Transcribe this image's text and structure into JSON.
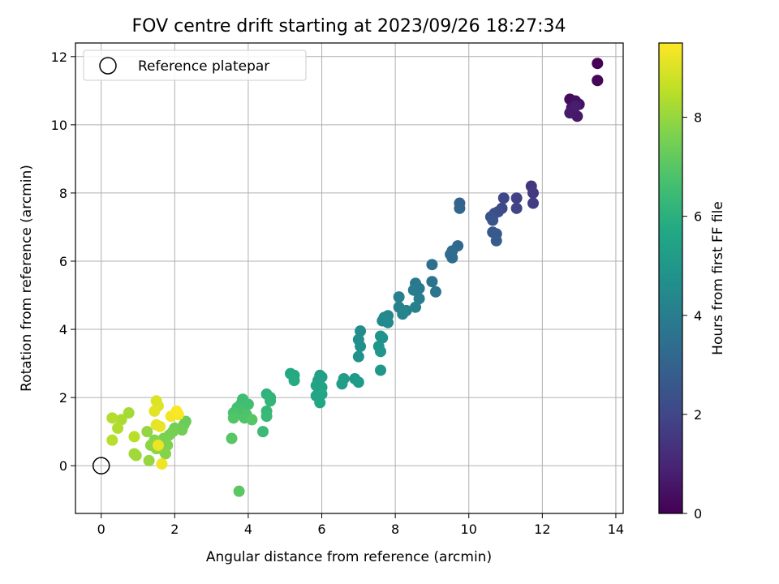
{
  "chart_data": {
    "type": "scatter",
    "title": "FOV centre drift starting at 2023/09/26 18:27:34",
    "xlabel": "Angular distance from reference (arcmin)",
    "ylabel": "Rotation from reference (arcmin)",
    "xlim": [
      -0.7,
      14.2
    ],
    "ylim": [
      -1.4,
      12.4
    ],
    "xticks": [
      0,
      2,
      4,
      6,
      8,
      10,
      12,
      14
    ],
    "yticks": [
      0,
      2,
      4,
      6,
      8,
      10,
      12
    ],
    "grid": true,
    "legend": {
      "placement": "top-left",
      "entries": [
        {
          "label": "Reference platepar",
          "marker": "open-circle"
        }
      ]
    },
    "reference_point": {
      "x": 0,
      "y": 0
    },
    "colorbar": {
      "label": "Hours from first FF file",
      "colormap": "viridis",
      "range": [
        0,
        9.5
      ],
      "ticks": [
        0,
        2,
        4,
        6,
        8
      ]
    },
    "points": [
      {
        "x": 13.5,
        "y": 11.8,
        "c": 0.05
      },
      {
        "x": 13.5,
        "y": 11.3,
        "c": 0.1
      },
      {
        "x": 13.5,
        "y": 11.3,
        "c": 0.15
      },
      {
        "x": 12.75,
        "y": 10.75,
        "c": 0.3
      },
      {
        "x": 12.9,
        "y": 10.7,
        "c": 0.4
      },
      {
        "x": 13.0,
        "y": 10.6,
        "c": 0.45
      },
      {
        "x": 12.8,
        "y": 10.5,
        "c": 0.5
      },
      {
        "x": 12.85,
        "y": 10.35,
        "c": 0.55
      },
      {
        "x": 12.95,
        "y": 10.25,
        "c": 0.6
      },
      {
        "x": 12.75,
        "y": 10.35,
        "c": 0.7
      },
      {
        "x": 12.9,
        "y": 10.55,
        "c": 0.75
      },
      {
        "x": 11.7,
        "y": 8.2,
        "c": 1.5
      },
      {
        "x": 11.75,
        "y": 8.0,
        "c": 1.6
      },
      {
        "x": 11.75,
        "y": 7.7,
        "c": 1.7
      },
      {
        "x": 11.3,
        "y": 7.85,
        "c": 1.8
      },
      {
        "x": 11.3,
        "y": 7.55,
        "c": 1.9
      },
      {
        "x": 10.95,
        "y": 7.85,
        "c": 2.0
      },
      {
        "x": 10.9,
        "y": 7.55,
        "c": 2.1
      },
      {
        "x": 10.8,
        "y": 7.45,
        "c": 2.2
      },
      {
        "x": 10.7,
        "y": 7.4,
        "c": 2.3
      },
      {
        "x": 10.6,
        "y": 7.3,
        "c": 2.4
      },
      {
        "x": 10.65,
        "y": 7.2,
        "c": 2.5
      },
      {
        "x": 10.65,
        "y": 6.85,
        "c": 2.6
      },
      {
        "x": 10.75,
        "y": 6.8,
        "c": 2.65
      },
      {
        "x": 10.75,
        "y": 6.6,
        "c": 2.7
      },
      {
        "x": 9.75,
        "y": 7.7,
        "c": 3.0
      },
      {
        "x": 9.75,
        "y": 7.55,
        "c": 3.1
      },
      {
        "x": 9.7,
        "y": 6.45,
        "c": 3.2
      },
      {
        "x": 9.55,
        "y": 6.3,
        "c": 3.3
      },
      {
        "x": 9.5,
        "y": 6.2,
        "c": 3.35
      },
      {
        "x": 9.55,
        "y": 6.1,
        "c": 3.4
      },
      {
        "x": 9.0,
        "y": 5.9,
        "c": 3.5
      },
      {
        "x": 9.0,
        "y": 5.4,
        "c": 3.6
      },
      {
        "x": 9.1,
        "y": 5.1,
        "c": 3.7
      },
      {
        "x": 8.55,
        "y": 5.35,
        "c": 3.8
      },
      {
        "x": 8.65,
        "y": 5.2,
        "c": 3.85
      },
      {
        "x": 8.5,
        "y": 5.15,
        "c": 3.9
      },
      {
        "x": 8.65,
        "y": 4.9,
        "c": 4.0
      },
      {
        "x": 8.1,
        "y": 4.95,
        "c": 4.05
      },
      {
        "x": 8.55,
        "y": 4.65,
        "c": 4.1
      },
      {
        "x": 8.1,
        "y": 4.65,
        "c": 4.15
      },
      {
        "x": 8.3,
        "y": 4.55,
        "c": 4.2
      },
      {
        "x": 8.2,
        "y": 4.45,
        "c": 4.3
      },
      {
        "x": 7.8,
        "y": 4.4,
        "c": 4.35
      },
      {
        "x": 7.7,
        "y": 4.35,
        "c": 4.4
      },
      {
        "x": 7.65,
        "y": 4.25,
        "c": 4.45
      },
      {
        "x": 7.8,
        "y": 4.2,
        "c": 4.5
      },
      {
        "x": 7.05,
        "y": 3.95,
        "c": 4.6
      },
      {
        "x": 7.0,
        "y": 3.7,
        "c": 4.65
      },
      {
        "x": 7.05,
        "y": 3.5,
        "c": 4.7
      },
      {
        "x": 7.0,
        "y": 3.2,
        "c": 4.75
      },
      {
        "x": 7.6,
        "y": 3.8,
        "c": 4.8
      },
      {
        "x": 7.65,
        "y": 3.75,
        "c": 4.85
      },
      {
        "x": 7.55,
        "y": 3.5,
        "c": 4.9
      },
      {
        "x": 7.6,
        "y": 3.35,
        "c": 4.95
      },
      {
        "x": 7.6,
        "y": 2.8,
        "c": 5.0
      },
      {
        "x": 6.9,
        "y": 2.55,
        "c": 5.1
      },
      {
        "x": 7.0,
        "y": 2.45,
        "c": 5.15
      },
      {
        "x": 6.6,
        "y": 2.55,
        "c": 5.2
      },
      {
        "x": 6.55,
        "y": 2.4,
        "c": 5.25
      },
      {
        "x": 5.95,
        "y": 2.65,
        "c": 5.3
      },
      {
        "x": 6.0,
        "y": 2.6,
        "c": 5.35
      },
      {
        "x": 5.9,
        "y": 2.5,
        "c": 5.4
      },
      {
        "x": 5.85,
        "y": 2.35,
        "c": 5.45
      },
      {
        "x": 6.0,
        "y": 2.3,
        "c": 5.5
      },
      {
        "x": 5.85,
        "y": 2.05,
        "c": 5.55
      },
      {
        "x": 6.0,
        "y": 2.1,
        "c": 5.6
      },
      {
        "x": 5.95,
        "y": 1.85,
        "c": 5.65
      },
      {
        "x": 5.15,
        "y": 2.7,
        "c": 5.7
      },
      {
        "x": 5.25,
        "y": 2.65,
        "c": 5.75
      },
      {
        "x": 5.25,
        "y": 2.5,
        "c": 5.8
      },
      {
        "x": 4.5,
        "y": 2.1,
        "c": 6.1
      },
      {
        "x": 4.6,
        "y": 2.0,
        "c": 6.15
      },
      {
        "x": 4.6,
        "y": 1.9,
        "c": 6.2
      },
      {
        "x": 4.5,
        "y": 1.6,
        "c": 6.3
      },
      {
        "x": 4.5,
        "y": 1.45,
        "c": 6.35
      },
      {
        "x": 4.4,
        "y": 1.0,
        "c": 6.4
      },
      {
        "x": 3.85,
        "y": 1.95,
        "c": 6.5
      },
      {
        "x": 3.8,
        "y": 1.8,
        "c": 6.55
      },
      {
        "x": 4.0,
        "y": 1.8,
        "c": 6.6
      },
      {
        "x": 3.7,
        "y": 1.7,
        "c": 6.65
      },
      {
        "x": 3.8,
        "y": 1.6,
        "c": 6.7
      },
      {
        "x": 3.6,
        "y": 1.55,
        "c": 6.75
      },
      {
        "x": 3.95,
        "y": 1.5,
        "c": 6.8
      },
      {
        "x": 3.9,
        "y": 1.4,
        "c": 6.85
      },
      {
        "x": 3.6,
        "y": 1.4,
        "c": 6.9
      },
      {
        "x": 4.1,
        "y": 1.35,
        "c": 6.95
      },
      {
        "x": 3.55,
        "y": 0.8,
        "c": 7.0
      },
      {
        "x": 3.75,
        "y": -0.75,
        "c": 7.05
      },
      {
        "x": 2.3,
        "y": 1.3,
        "c": 7.3
      },
      {
        "x": 2.25,
        "y": 1.2,
        "c": 7.35
      },
      {
        "x": 2.2,
        "y": 1.05,
        "c": 7.4
      },
      {
        "x": 2.0,
        "y": 1.1,
        "c": 7.45
      },
      {
        "x": 1.95,
        "y": 1.0,
        "c": 7.5
      },
      {
        "x": 1.85,
        "y": 0.9,
        "c": 7.55
      },
      {
        "x": 1.7,
        "y": 0.8,
        "c": 7.6
      },
      {
        "x": 1.8,
        "y": 0.6,
        "c": 7.65
      },
      {
        "x": 1.7,
        "y": 0.45,
        "c": 7.7
      },
      {
        "x": 1.75,
        "y": 0.35,
        "c": 7.75
      },
      {
        "x": 1.45,
        "y": 0.75,
        "c": 7.8
      },
      {
        "x": 1.35,
        "y": 0.6,
        "c": 7.85
      },
      {
        "x": 1.5,
        "y": 0.5,
        "c": 7.9
      },
      {
        "x": 1.25,
        "y": 1.0,
        "c": 7.95
      },
      {
        "x": 1.3,
        "y": 0.15,
        "c": 8.0
      },
      {
        "x": 0.95,
        "y": 0.3,
        "c": 8.1
      },
      {
        "x": 0.9,
        "y": 0.35,
        "c": 8.15
      },
      {
        "x": 0.75,
        "y": 1.55,
        "c": 8.2
      },
      {
        "x": 0.55,
        "y": 1.35,
        "c": 8.3
      },
      {
        "x": 0.45,
        "y": 1.1,
        "c": 8.35
      },
      {
        "x": 0.3,
        "y": 1.4,
        "c": 8.4
      },
      {
        "x": 0.3,
        "y": 0.75,
        "c": 8.45
      },
      {
        "x": 0.9,
        "y": 0.85,
        "c": 8.5
      },
      {
        "x": 1.5,
        "y": 1.9,
        "c": 9.0
      },
      {
        "x": 1.55,
        "y": 1.75,
        "c": 9.05
      },
      {
        "x": 1.45,
        "y": 1.6,
        "c": 9.1
      },
      {
        "x": 1.5,
        "y": 1.2,
        "c": 9.15
      },
      {
        "x": 1.6,
        "y": 1.15,
        "c": 9.2
      },
      {
        "x": 1.55,
        "y": 0.6,
        "c": 9.25
      },
      {
        "x": 1.65,
        "y": 0.05,
        "c": 9.3
      },
      {
        "x": 1.9,
        "y": 1.45,
        "c": 9.35
      },
      {
        "x": 2.1,
        "y": 1.5,
        "c": 9.4
      },
      {
        "x": 2.05,
        "y": 1.6,
        "c": 9.45
      }
    ]
  }
}
